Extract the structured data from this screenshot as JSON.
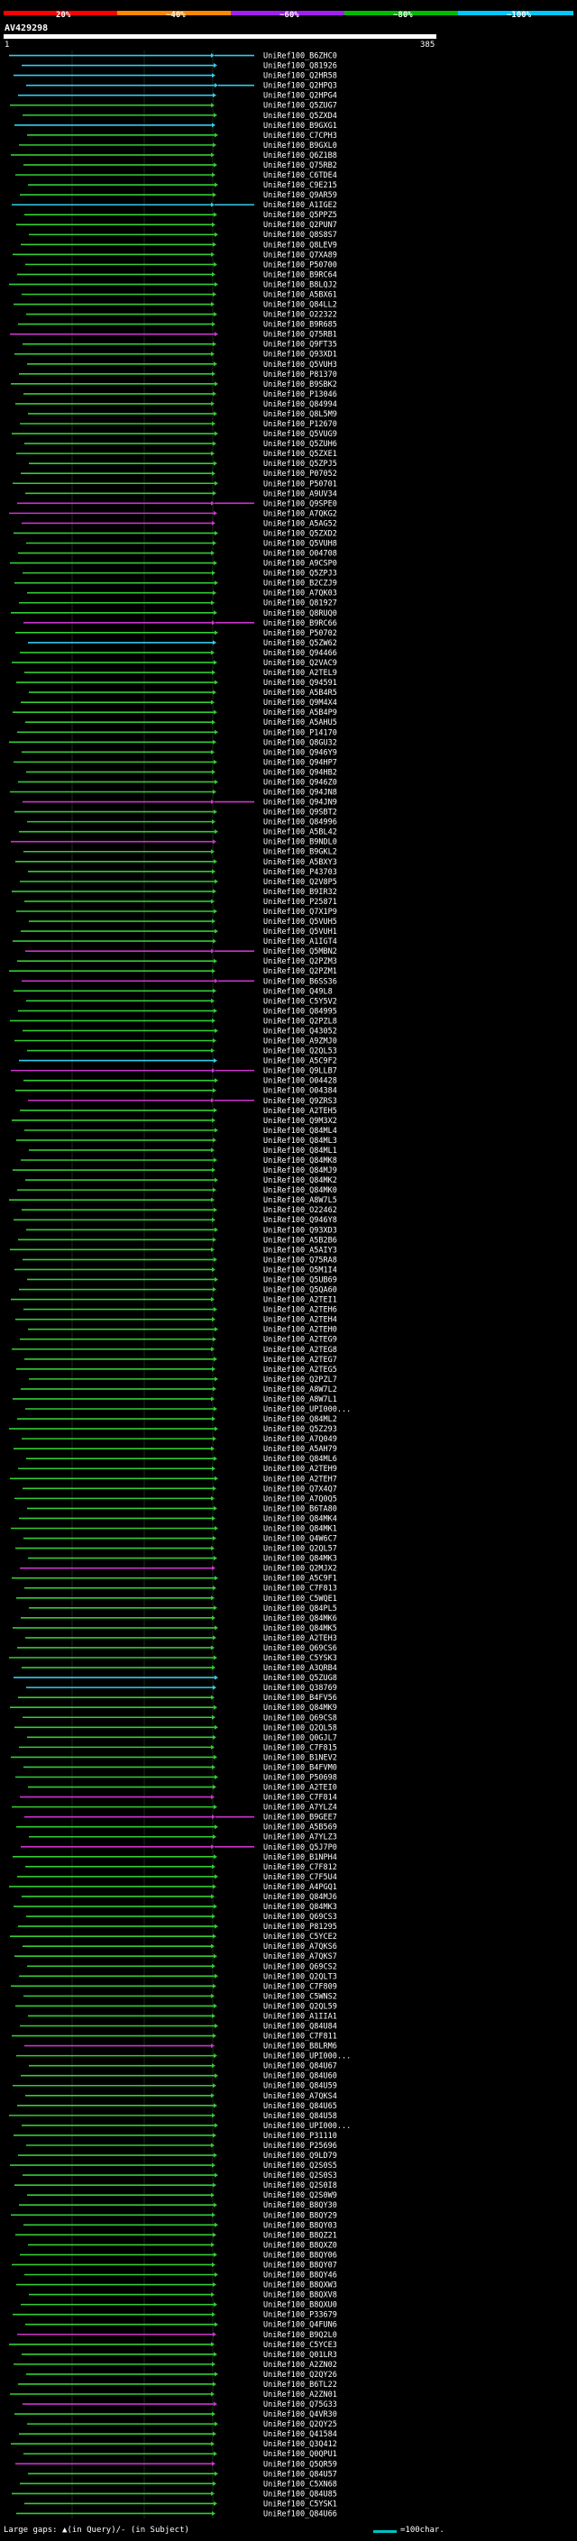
{
  "legend": {
    "percent_labels": [
      "20%",
      "~40%",
      "~60%",
      "~80%",
      "~100%"
    ],
    "colors": [
      "#ff0000",
      "#ff8800",
      "#a020f0",
      "#00bb00",
      "#00c8ff"
    ]
  },
  "query": {
    "title": "AV429298",
    "start": "1",
    "end": "385"
  },
  "alignment_colors": {
    "green": "#33cc33",
    "magenta": "#cc33cc",
    "cyan": "#33ccee"
  },
  "hits": [
    {
      "name": "UniRef100_B6ZHC0",
      "color": "cyan"
    },
    {
      "name": "UniRef100_Q81926",
      "color": "cyan"
    },
    {
      "name": "UniRef100_Q2HR58",
      "color": "cyan"
    },
    {
      "name": "UniRef100_Q2HPQ3",
      "color": "cyan"
    },
    {
      "name": "UniRef100_Q2HPG4",
      "color": "cyan"
    },
    {
      "name": "UniRef100_Q5ZUG7",
      "color": "green"
    },
    {
      "name": "UniRef100_Q5ZXD4",
      "color": "green"
    },
    {
      "name": "UniRef100_B9GXG1",
      "color": "cyan"
    },
    {
      "name": "UniRef100_C7CPH3",
      "color": "green"
    },
    {
      "name": "UniRef100_B9GXL0",
      "color": "green"
    },
    {
      "name": "UniRef100_Q6Z1B8",
      "color": "green"
    },
    {
      "name": "UniRef100_Q75RB2",
      "color": "green"
    },
    {
      "name": "UniRef100_C6TDE4",
      "color": "green"
    },
    {
      "name": "UniRef100_C9E215",
      "color": "green"
    },
    {
      "name": "UniRef100_Q9AR59",
      "color": "green"
    },
    {
      "name": "UniRef100_A1IGE2",
      "color": "cyan"
    },
    {
      "name": "UniRef100_Q5PPZ5",
      "color": "green"
    },
    {
      "name": "UniRef100_Q2PUN7",
      "color": "green"
    },
    {
      "name": "UniRef100_Q8S8S7",
      "color": "green"
    },
    {
      "name": "UniRef100_Q8LEV9",
      "color": "green"
    },
    {
      "name": "UniRef100_Q7XA89",
      "color": "green"
    },
    {
      "name": "UniRef100_P50700",
      "color": "green"
    },
    {
      "name": "UniRef100_B9RC64",
      "color": "green"
    },
    {
      "name": "UniRef100_B8LQJ2",
      "color": "green"
    },
    {
      "name": "UniRef100_A5BX61",
      "color": "green"
    },
    {
      "name": "UniRef100_Q84LL2",
      "color": "green"
    },
    {
      "name": "UniRef100_O22322",
      "color": "green"
    },
    {
      "name": "UniRef100_B9R685",
      "color": "green"
    },
    {
      "name": "UniRef100_Q75RB1",
      "color": "magenta"
    },
    {
      "name": "UniRef100_Q9FT35",
      "color": "green"
    },
    {
      "name": "UniRef100_Q93XD1",
      "color": "green"
    },
    {
      "name": "UniRef100_Q5VUH3",
      "color": "green"
    },
    {
      "name": "UniRef100_P81370",
      "color": "green"
    },
    {
      "name": "UniRef100_B9SBK2",
      "color": "green"
    },
    {
      "name": "UniRef100_P13046",
      "color": "green"
    },
    {
      "name": "UniRef100_Q84994",
      "color": "green"
    },
    {
      "name": "UniRef100_Q8L5M9",
      "color": "green"
    },
    {
      "name": "UniRef100_P12670",
      "color": "green"
    },
    {
      "name": "UniRef100_Q5VUG9",
      "color": "green"
    },
    {
      "name": "UniRef100_Q5ZUH6",
      "color": "green"
    },
    {
      "name": "UniRef100_Q5ZXE1",
      "color": "green"
    },
    {
      "name": "UniRef100_Q5ZPJ5",
      "color": "green"
    },
    {
      "name": "UniRef100_P07052",
      "color": "green"
    },
    {
      "name": "UniRef100_P50701",
      "color": "green"
    },
    {
      "name": "UniRef100_A9UV34",
      "color": "green"
    },
    {
      "name": "UniRef100_Q9SPE0",
      "color": "magenta"
    },
    {
      "name": "UniRef100_A7QKG2",
      "color": "magenta"
    },
    {
      "name": "UniRef100_A5AG52",
      "color": "magenta"
    },
    {
      "name": "UniRef100_Q5ZXD2",
      "color": "green"
    },
    {
      "name": "UniRef100_Q5VUH8",
      "color": "green"
    },
    {
      "name": "UniRef100_O04708",
      "color": "green"
    },
    {
      "name": "UniRef100_A9CSP0",
      "color": "green"
    },
    {
      "name": "UniRef100_Q5ZPJ3",
      "color": "green"
    },
    {
      "name": "UniRef100_B2CZJ9",
      "color": "green"
    },
    {
      "name": "UniRef100_A7QK03",
      "color": "green"
    },
    {
      "name": "UniRef100_Q81927",
      "color": "green"
    },
    {
      "name": "UniRef100_Q8RUQ0",
      "color": "green"
    },
    {
      "name": "UniRef100_B9RC66",
      "color": "magenta"
    },
    {
      "name": "UniRef100_P50702",
      "color": "green"
    },
    {
      "name": "UniRef100_Q5ZW62",
      "color": "cyan"
    },
    {
      "name": "UniRef100_Q94466",
      "color": "green"
    },
    {
      "name": "UniRef100_Q2VAC9",
      "color": "green"
    },
    {
      "name": "UniRef100_A2TEL9",
      "color": "green"
    },
    {
      "name": "UniRef100_Q94591",
      "color": "green"
    },
    {
      "name": "UniRef100_A5B4R5",
      "color": "green"
    },
    {
      "name": "UniRef100_Q9M4X4",
      "color": "green"
    },
    {
      "name": "UniRef100_A5B4P9",
      "color": "green"
    },
    {
      "name": "UniRef100_A5AHU5",
      "color": "green"
    },
    {
      "name": "UniRef100_P14170",
      "color": "green"
    },
    {
      "name": "UniRef100_Q8GU32",
      "color": "green"
    },
    {
      "name": "UniRef100_Q946Y9",
      "color": "green"
    },
    {
      "name": "UniRef100_Q94HP7",
      "color": "green"
    },
    {
      "name": "UniRef100_Q94HB2",
      "color": "green"
    },
    {
      "name": "UniRef100_Q946Z0",
      "color": "green"
    },
    {
      "name": "UniRef100_Q94JN8",
      "color": "green"
    },
    {
      "name": "UniRef100_Q94JN9",
      "color": "magenta"
    },
    {
      "name": "UniRef100_Q9SBT2",
      "color": "green"
    },
    {
      "name": "UniRef100_Q84996",
      "color": "green"
    },
    {
      "name": "UniRef100_A5BL42",
      "color": "green"
    },
    {
      "name": "UniRef100_B9NDL0",
      "color": "magenta"
    },
    {
      "name": "UniRef100_B9GKL2",
      "color": "green"
    },
    {
      "name": "UniRef100_A5BXY3",
      "color": "green"
    },
    {
      "name": "UniRef100_P43703",
      "color": "green"
    },
    {
      "name": "UniRef100_Q2V8P5",
      "color": "green"
    },
    {
      "name": "UniRef100_B9IR32",
      "color": "green"
    },
    {
      "name": "UniRef100_P25871",
      "color": "green"
    },
    {
      "name": "UniRef100_Q7X1P9",
      "color": "green"
    },
    {
      "name": "UniRef100_Q5VUH5",
      "color": "green"
    },
    {
      "name": "UniRef100_Q5VUH1",
      "color": "green"
    },
    {
      "name": "UniRef100_A1IGT4",
      "color": "green"
    },
    {
      "name": "UniRef100_Q5MBN2",
      "color": "magenta"
    },
    {
      "name": "UniRef100_Q2PZM3",
      "color": "green"
    },
    {
      "name": "UniRef100_Q2PZM1",
      "color": "green"
    },
    {
      "name": "UniRef100_B6SS36",
      "color": "magenta"
    },
    {
      "name": "UniRef100_Q49L8",
      "color": "green"
    },
    {
      "name": "UniRef100_C5Y5V2",
      "color": "green"
    },
    {
      "name": "UniRef100_Q84995",
      "color": "green"
    },
    {
      "name": "UniRef100_Q2PZL8",
      "color": "green"
    },
    {
      "name": "UniRef100_Q43052",
      "color": "green"
    },
    {
      "name": "UniRef100_A9ZMJ0",
      "color": "green"
    },
    {
      "name": "UniRef100_Q2QL53",
      "color": "green"
    },
    {
      "name": "UniRef100_A5C9F2",
      "color": "cyan"
    },
    {
      "name": "UniRef100_Q9LLB7",
      "color": "magenta"
    },
    {
      "name": "UniRef100_O04428",
      "color": "green"
    },
    {
      "name": "UniRef100_O04384",
      "color": "green"
    },
    {
      "name": "UniRef100_Q9ZRS3",
      "color": "magenta"
    },
    {
      "name": "UniRef100_A2TEH5",
      "color": "green"
    },
    {
      "name": "UniRef100_Q9M3X2",
      "color": "green"
    },
    {
      "name": "UniRef100_Q84ML4",
      "color": "green"
    },
    {
      "name": "UniRef100_Q84ML3",
      "color": "green"
    },
    {
      "name": "UniRef100_Q84ML1",
      "color": "green"
    },
    {
      "name": "UniRef100_Q84MK8",
      "color": "green"
    },
    {
      "name": "UniRef100_Q84MJ9",
      "color": "green"
    },
    {
      "name": "UniRef100_Q84MK2",
      "color": "green"
    },
    {
      "name": "UniRef100_Q84MK0",
      "color": "green"
    },
    {
      "name": "UniRef100_A8W7L5",
      "color": "green"
    },
    {
      "name": "UniRef100_O22462",
      "color": "green"
    },
    {
      "name": "UniRef100_Q946Y8",
      "color": "green"
    },
    {
      "name": "UniRef100_Q93XD3",
      "color": "green"
    },
    {
      "name": "UniRef100_A5B2B6",
      "color": "green"
    },
    {
      "name": "UniRef100_A5AIY3",
      "color": "green"
    },
    {
      "name": "UniRef100_Q75RA8",
      "color": "green"
    },
    {
      "name": "UniRef100_O5M1I4",
      "color": "green"
    },
    {
      "name": "UniRef100_Q5UB69",
      "color": "green"
    },
    {
      "name": "UniRef100_Q5QA60",
      "color": "green"
    },
    {
      "name": "UniRef100_A2TEI1",
      "color": "green"
    },
    {
      "name": "UniRef100_A2TEH6",
      "color": "green"
    },
    {
      "name": "UniRef100_A2TEH4",
      "color": "green"
    },
    {
      "name": "UniRef100_A2TEH0",
      "color": "green"
    },
    {
      "name": "UniRef100_A2TEG9",
      "color": "green"
    },
    {
      "name": "UniRef100_A2TEG8",
      "color": "green"
    },
    {
      "name": "UniRef100_A2TEG7",
      "color": "green"
    },
    {
      "name": "UniRef100_A2TEG5",
      "color": "green"
    },
    {
      "name": "UniRef100_Q2PZL7",
      "color": "green"
    },
    {
      "name": "UniRef100_A8W7L2",
      "color": "green"
    },
    {
      "name": "UniRef100_A8W7L1",
      "color": "green"
    },
    {
      "name": "UniRef100_UPI000...",
      "color": "green"
    },
    {
      "name": "UniRef100_Q84ML2",
      "color": "green"
    },
    {
      "name": "UniRef100_Q5Z293",
      "color": "green"
    },
    {
      "name": "UniRef100_A7Q049",
      "color": "green"
    },
    {
      "name": "UniRef100_A5AH79",
      "color": "green"
    },
    {
      "name": "UniRef100_Q84ML6",
      "color": "green"
    },
    {
      "name": "UniRef100_A2TEH9",
      "color": "green"
    },
    {
      "name": "UniRef100_A2TEH7",
      "color": "green"
    },
    {
      "name": "UniRef100_Q7X4Q7",
      "color": "green"
    },
    {
      "name": "UniRef100_A7Q0Q5",
      "color": "green"
    },
    {
      "name": "UniRef100_B6TA80",
      "color": "green"
    },
    {
      "name": "UniRef100_Q84MK4",
      "color": "green"
    },
    {
      "name": "UniRef100_Q84MK1",
      "color": "green"
    },
    {
      "name": "UniRef100_Q4W6C7",
      "color": "green"
    },
    {
      "name": "UniRef100_Q2QL57",
      "color": "green"
    },
    {
      "name": "UniRef100_Q84MK3",
      "color": "green"
    },
    {
      "name": "UniRef100_Q2MJX2",
      "color": "magenta"
    },
    {
      "name": "UniRef100_A5C9F1",
      "color": "green"
    },
    {
      "name": "UniRef100_C7F813",
      "color": "green"
    },
    {
      "name": "UniRef100_C5WQE1",
      "color": "green"
    },
    {
      "name": "UniRef100_Q84PL5",
      "color": "green"
    },
    {
      "name": "UniRef100_Q84MK6",
      "color": "green"
    },
    {
      "name": "UniRef100_Q84MK5",
      "color": "green"
    },
    {
      "name": "UniRef100_A2TEH3",
      "color": "green"
    },
    {
      "name": "UniRef100_Q69CS6",
      "color": "green"
    },
    {
      "name": "UniRef100_C5YSK3",
      "color": "green"
    },
    {
      "name": "UniRef100_A3QRB4",
      "color": "green"
    },
    {
      "name": "UniRef100_Q5ZUG8",
      "color": "cyan"
    },
    {
      "name": "UniRef100_Q38769",
      "color": "cyan"
    },
    {
      "name": "UniRef100_B4FV56",
      "color": "green"
    },
    {
      "name": "UniRef100_Q84MK9",
      "color": "green"
    },
    {
      "name": "UniRef100_Q69CS8",
      "color": "green"
    },
    {
      "name": "UniRef100_Q2QL58",
      "color": "green"
    },
    {
      "name": "UniRef100_Q0GJL7",
      "color": "green"
    },
    {
      "name": "UniRef100_C7F815",
      "color": "green"
    },
    {
      "name": "UniRef100_B1NEV2",
      "color": "green"
    },
    {
      "name": "UniRef100_B4FVM0",
      "color": "green"
    },
    {
      "name": "UniRef100_P50698",
      "color": "green"
    },
    {
      "name": "UniRef100_A2TEI0",
      "color": "green"
    },
    {
      "name": "UniRef100_C7F814",
      "color": "magenta"
    },
    {
      "name": "UniRef100_A7YLZ4",
      "color": "green"
    },
    {
      "name": "UniRef100_B9GEE7",
      "color": "magenta"
    },
    {
      "name": "UniRef100_A5B569",
      "color": "green"
    },
    {
      "name": "UniRef100_A7YLZ3",
      "color": "green"
    },
    {
      "name": "UniRef100_Q5J7P0",
      "color": "magenta"
    },
    {
      "name": "UniRef100_B1NPH4",
      "color": "green"
    },
    {
      "name": "UniRef100_C7F812",
      "color": "green"
    },
    {
      "name": "UniRef100_C7F5U4",
      "color": "green"
    },
    {
      "name": "UniRef100_A4PGQ1",
      "color": "green"
    },
    {
      "name": "UniRef100_Q84MJ6",
      "color": "green"
    },
    {
      "name": "UniRef100_Q84MK3",
      "color": "green"
    },
    {
      "name": "UniRef100_Q69CS3",
      "color": "green"
    },
    {
      "name": "UniRef100_P81295",
      "color": "green"
    },
    {
      "name": "UniRef100_C5YCE2",
      "color": "green"
    },
    {
      "name": "UniRef100_A7QKS6",
      "color": "green"
    },
    {
      "name": "UniRef100_A7QKS7",
      "color": "green"
    },
    {
      "name": "UniRef100_Q69CS2",
      "color": "green"
    },
    {
      "name": "UniRef100_Q2QLT3",
      "color": "green"
    },
    {
      "name": "UniRef100_C7F809",
      "color": "green"
    },
    {
      "name": "UniRef100_C5WNS2",
      "color": "green"
    },
    {
      "name": "UniRef100_Q2QL59",
      "color": "green"
    },
    {
      "name": "UniRef100_A1IIA1",
      "color": "green"
    },
    {
      "name": "UniRef100_Q84U84",
      "color": "green"
    },
    {
      "name": "UniRef100_C7F811",
      "color": "green"
    },
    {
      "name": "UniRef100_B8LRM6",
      "color": "magenta"
    },
    {
      "name": "UniRef100_UPI000...",
      "color": "green"
    },
    {
      "name": "UniRef100_Q84U67",
      "color": "green"
    },
    {
      "name": "UniRef100_Q84U60",
      "color": "green"
    },
    {
      "name": "UniRef100_Q84U59",
      "color": "green"
    },
    {
      "name": "UniRef100_A7QKS4",
      "color": "green"
    },
    {
      "name": "UniRef100_Q84U65",
      "color": "green"
    },
    {
      "name": "UniRef100_Q84U58",
      "color": "green"
    },
    {
      "name": "UniRef100_UPI000...",
      "color": "green"
    },
    {
      "name": "UniRef100_P31110",
      "color": "green"
    },
    {
      "name": "UniRef100_P25696",
      "color": "green"
    },
    {
      "name": "UniRef100_Q9LD79",
      "color": "green"
    },
    {
      "name": "UniRef100_Q2S0S5",
      "color": "green"
    },
    {
      "name": "UniRef100_Q2S0S3",
      "color": "green"
    },
    {
      "name": "UniRef100_Q2S0I8",
      "color": "green"
    },
    {
      "name": "UniRef100_Q2S0W9",
      "color": "green"
    },
    {
      "name": "UniRef100_B8QY30",
      "color": "green"
    },
    {
      "name": "UniRef100_B8QY29",
      "color": "green"
    },
    {
      "name": "UniRef100_B8QY03",
      "color": "green"
    },
    {
      "name": "UniRef100_B8QZ21",
      "color": "green"
    },
    {
      "name": "UniRef100_B8QXZ0",
      "color": "green"
    },
    {
      "name": "UniRef100_B8QY06",
      "color": "green"
    },
    {
      "name": "UniRef100_B8QY07",
      "color": "green"
    },
    {
      "name": "UniRef100_B8QY46",
      "color": "green"
    },
    {
      "name": "UniRef100_B8QXW3",
      "color": "green"
    },
    {
      "name": "UniRef100_B8QXV8",
      "color": "green"
    },
    {
      "name": "UniRef100_B8QXU0",
      "color": "green"
    },
    {
      "name": "UniRef100_P33679",
      "color": "green"
    },
    {
      "name": "UniRef100_Q4FUN6",
      "color": "green"
    },
    {
      "name": "UniRef100_B9Q2L0",
      "color": "magenta"
    },
    {
      "name": "UniRef100_C5YCE3",
      "color": "green"
    },
    {
      "name": "UniRef100_Q01LR3",
      "color": "green"
    },
    {
      "name": "UniRef100_A2ZN02",
      "color": "green"
    },
    {
      "name": "UniRef100_Q2QY26",
      "color": "green"
    },
    {
      "name": "UniRef100_B6TL22",
      "color": "green"
    },
    {
      "name": "UniRef100_A2ZN01",
      "color": "green"
    },
    {
      "name": "UniRef100_Q75G33",
      "color": "magenta"
    },
    {
      "name": "UniRef100_Q4VR30",
      "color": "green"
    },
    {
      "name": "UniRef100_Q2QY25",
      "color": "green"
    },
    {
      "name": "UniRef100_Q41584",
      "color": "green"
    },
    {
      "name": "UniRef100_Q3Q412",
      "color": "green"
    },
    {
      "name": "UniRef100_Q0QPU1",
      "color": "green"
    },
    {
      "name": "UniRef100_Q5QR59",
      "color": "magenta"
    },
    {
      "name": "UniRef100_Q84U57",
      "color": "green"
    },
    {
      "name": "UniRef100_C5XN68",
      "color": "green"
    },
    {
      "name": "UniRef100_Q84U85",
      "color": "green"
    },
    {
      "name": "UniRef100_C5YSK1",
      "color": "green"
    },
    {
      "name": "UniRef100_Q84U66",
      "color": "green"
    }
  ],
  "footer": {
    "gap_note": "Large gaps: ▲(in Query)/- (in Subject)",
    "scale_note": "=100char."
  }
}
